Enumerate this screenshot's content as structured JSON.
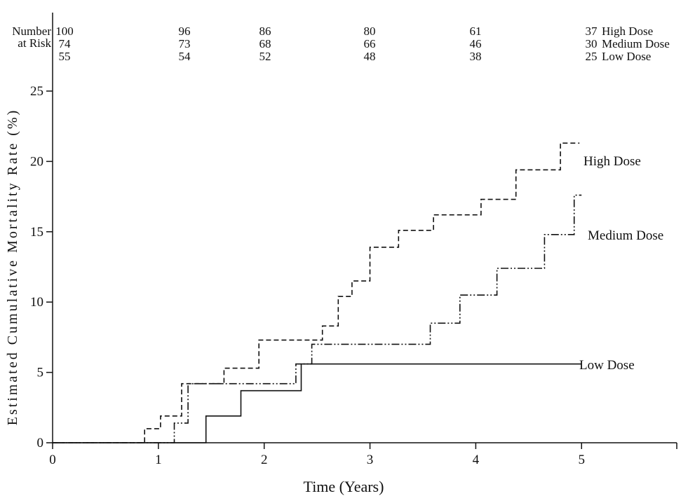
{
  "risk_table": {
    "header_line1": "Number",
    "header_line2": "at Risk",
    "groups": [
      {
        "name": "High Dose",
        "counts": [
          "100",
          "96",
          "86",
          "80",
          "61",
          "37"
        ]
      },
      {
        "name": "Medium Dose",
        "counts": [
          "74",
          "73",
          "68",
          "66",
          "46",
          "30"
        ]
      },
      {
        "name": "Low Dose",
        "counts": [
          "55",
          "54",
          "52",
          "48",
          "38",
          "25"
        ]
      }
    ]
  },
  "chart_data": {
    "type": "line",
    "subtype": "step-function-survival-curve",
    "title": "",
    "xlabel": "Time (Years)",
    "ylabel": "Estimated Cumulative Mortality Rate (%)",
    "xlim": [
      0,
      5.9
    ],
    "ylim": [
      0,
      25
    ],
    "xticks": [
      0,
      1,
      2,
      3,
      4,
      5
    ],
    "yticks": [
      0,
      5,
      10,
      15,
      20,
      25
    ],
    "grid": false,
    "legend_position": "inline-right-of-curves",
    "line_color": "#111111",
    "series": [
      {
        "name": "High Dose",
        "line_style": "dashed",
        "color": "#111111",
        "end_x": 4.98,
        "points": [
          [
            0,
            0
          ],
          [
            0.87,
            1.0
          ],
          [
            1.02,
            1.9
          ],
          [
            1.22,
            4.2
          ],
          [
            1.62,
            5.3
          ],
          [
            1.95,
            7.3
          ],
          [
            2.55,
            8.3
          ],
          [
            2.7,
            10.4
          ],
          [
            2.83,
            11.5
          ],
          [
            3.0,
            13.9
          ],
          [
            3.27,
            15.1
          ],
          [
            3.6,
            16.2
          ],
          [
            4.05,
            17.3
          ],
          [
            4.38,
            19.4
          ],
          [
            4.8,
            21.3
          ]
        ]
      },
      {
        "name": "Medium Dose",
        "line_style": "dash-dot-dot",
        "color": "#111111",
        "end_x": 5.0,
        "points": [
          [
            0,
            0
          ],
          [
            1.15,
            1.4
          ],
          [
            1.28,
            4.2
          ],
          [
            2.3,
            5.6
          ],
          [
            2.45,
            7.0
          ],
          [
            3.57,
            8.5
          ],
          [
            3.85,
            10.5
          ],
          [
            4.2,
            12.4
          ],
          [
            4.65,
            14.8
          ],
          [
            4.93,
            17.6
          ]
        ]
      },
      {
        "name": "Low Dose",
        "line_style": "solid",
        "color": "#111111",
        "end_x": 5.0,
        "points": [
          [
            0,
            0
          ],
          [
            1.45,
            1.9
          ],
          [
            1.78,
            3.7
          ],
          [
            2.35,
            5.6
          ]
        ]
      }
    ]
  }
}
